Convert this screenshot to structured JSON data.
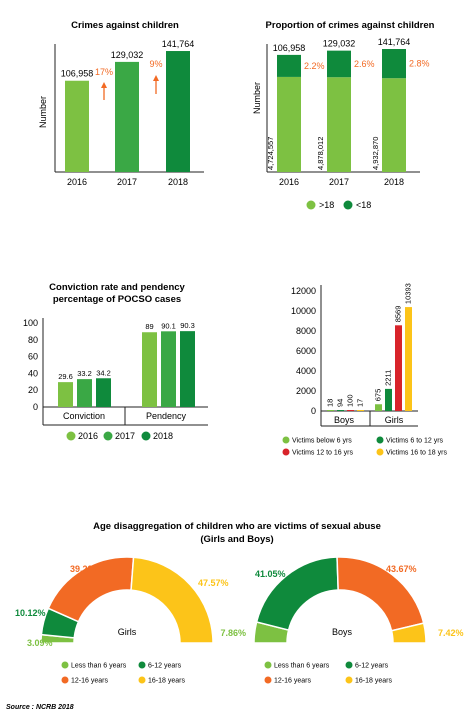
{
  "colors": {
    "light": "#7dc142",
    "mid": "#3aa845",
    "dark": "#0f8a3c",
    "orange": "#f26a24",
    "red": "#d8232a",
    "yellow": "#fcc419",
    "axis": "#222222"
  },
  "chart_data": [
    {
      "id": "crimes",
      "type": "bar",
      "title": "Crimes against children",
      "ylabel": "Number",
      "categories": [
        "2016",
        "2017",
        "2018"
      ],
      "values": [
        106958,
        129032,
        141764
      ],
      "value_labels": [
        "106,958",
        "129,032",
        "141,764"
      ],
      "growth_labels": [
        "17%",
        "9%"
      ],
      "ylim": [
        0,
        150000
      ]
    },
    {
      "id": "proportion",
      "type": "bar",
      "stacked": true,
      "title": "Proportion of crimes against children",
      "ylabel": "Number",
      "categories": [
        "2016",
        "2017",
        "2018"
      ],
      "series": [
        {
          "name": ">18",
          "values": [
            4724557,
            4878012,
            4932870
          ],
          "labels": [
            "4,724,557",
            "4,878,012",
            "4,932,870"
          ]
        },
        {
          "name": "<18",
          "values": [
            106958,
            129032,
            141764
          ],
          "labels": [
            "106,958",
            "129,032",
            "141,764"
          ]
        }
      ],
      "share_labels": [
        "2.2%",
        "2.6%",
        "2.8%"
      ],
      "legend": ">18 / <18 bottom"
    },
    {
      "id": "pocso",
      "type": "bar",
      "title": "Conviction rate and pendency percentage of POCSO cases",
      "title_lines": [
        "Conviction rate and pendency",
        "percentage of POCSO cases"
      ],
      "categories": [
        "Conviction",
        "Pendency"
      ],
      "series": [
        {
          "name": "2016",
          "values": [
            29.6,
            89
          ]
        },
        {
          "name": "2017",
          "values": [
            33.2,
            90.1
          ]
        },
        {
          "name": "2018",
          "values": [
            34.2,
            90.3
          ]
        }
      ],
      "yticks": [
        0,
        20,
        40,
        60,
        80,
        100
      ],
      "ylim": [
        0,
        100
      ]
    },
    {
      "id": "victims",
      "type": "bar",
      "categories": [
        "Boys",
        "Girls"
      ],
      "series": [
        {
          "name": "Victims below 6 yrs",
          "values": [
            18,
            675
          ]
        },
        {
          "name": "Victims 6 to 12 yrs",
          "values": [
            94,
            2211
          ]
        },
        {
          "name": "Victims 12 to 16 yrs",
          "values": [
            100,
            8569
          ]
        },
        {
          "name": "Victims 16 to 18 yrs",
          "values": [
            17,
            10393
          ]
        }
      ],
      "yticks": [
        0,
        2000,
        4000,
        6000,
        8000,
        10000,
        12000
      ],
      "ylim": [
        0,
        12000
      ]
    },
    {
      "id": "age_disaggregation",
      "type": "pie",
      "title_lines": [
        "Age disaggregation of children who are victims of sexual abuse",
        "(Girls and Boys)"
      ],
      "groups": [
        {
          "name": "Girls",
          "categories": [
            "Less than 6 years",
            "6-12 years",
            "12-16 years",
            "16-18 years"
          ],
          "values": [
            3.09,
            10.12,
            39.22,
            47.57
          ],
          "labels": [
            "3.09%",
            "10.12%",
            "39.22%",
            "47.57%"
          ]
        },
        {
          "name": "Boys",
          "categories": [
            "Less than 6 years",
            "6-12 years",
            "12-16 years",
            "16-18 years"
          ],
          "values": [
            7.86,
            41.05,
            43.67,
            7.42
          ],
          "labels": [
            "7.86%",
            "41.05%",
            "43.67%",
            "7.42%"
          ]
        }
      ],
      "legend": [
        "Less than 6 years",
        "6-12 years",
        "12-16 years",
        "16-18 years"
      ]
    }
  ],
  "source": "Source : NCRB 2018"
}
